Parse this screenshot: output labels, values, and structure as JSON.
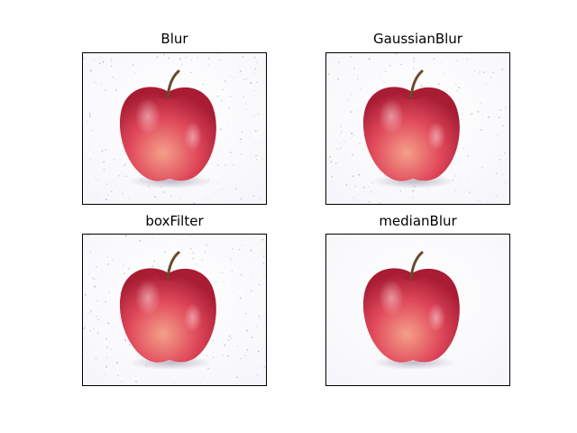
{
  "panels": [
    {
      "title": "Blur",
      "noise": true
    },
    {
      "title": "GaussianBlur",
      "noise": true
    },
    {
      "title": "boxFilter",
      "noise": true
    },
    {
      "title": "medianBlur",
      "noise": false
    }
  ],
  "colors": {
    "background": "#f7f6fa",
    "apple_light": "#f4a08a",
    "apple_mid": "#e0485a",
    "apple_dark": "#a81c34",
    "stem": "#6b4a2a",
    "shadow": "#b8b3c2",
    "noise": "#9aa0a8"
  }
}
